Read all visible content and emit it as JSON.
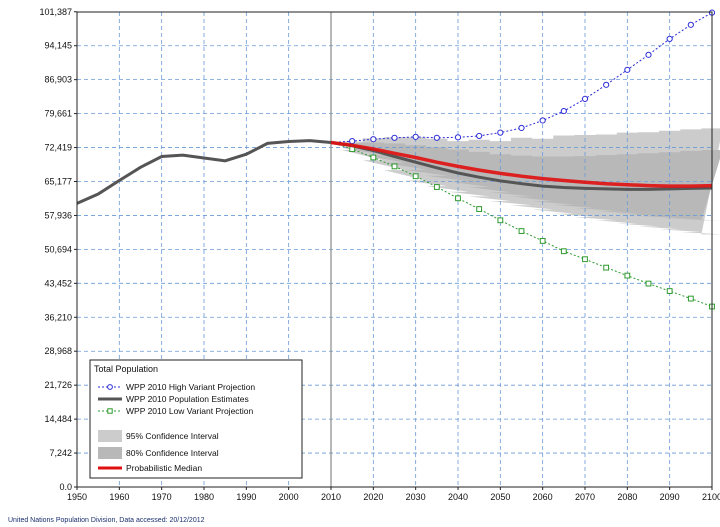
{
  "chart_data": {
    "type": "line",
    "title": "",
    "xlabel": "",
    "ylabel": "",
    "xlim": [
      1950,
      2100
    ],
    "ylim": [
      0,
      101338
    ],
    "x_ticks": [
      1950,
      1960,
      1970,
      1980,
      1990,
      2000,
      2010,
      2020,
      2030,
      2040,
      2050,
      2060,
      2070,
      2080,
      2090,
      2100
    ],
    "y_ticks": [
      {
        "value": 0,
        "label": "0.0"
      },
      {
        "value": 7242,
        "label": "7,242"
      },
      {
        "value": 14484,
        "label": "14,484"
      },
      {
        "value": 21726,
        "label": "21,726"
      },
      {
        "value": 28968,
        "label": "28,968"
      },
      {
        "value": 36210,
        "label": "36,210"
      },
      {
        "value": 43452,
        "label": "43,452"
      },
      {
        "value": 50694,
        "label": "50,694"
      },
      {
        "value": 57936,
        "label": "57,936"
      },
      {
        "value": 65177,
        "label": "65,177"
      },
      {
        "value": 72419,
        "label": "72,419"
      },
      {
        "value": 79661,
        "label": "79,661"
      },
      {
        "value": 86903,
        "label": "86,903"
      },
      {
        "value": 94145,
        "label": "94,145"
      },
      {
        "value": 101387,
        "label": "101,387"
      }
    ],
    "grid": true,
    "grid_style": "dashed",
    "base_year": 2010,
    "legend_position": "bottom-left",
    "legend_title": "Total Population",
    "series": [
      {
        "name": "WPP 2010 High Variant Projection",
        "color": "#2b2bd6",
        "marker": "circle",
        "style": "dotted",
        "x": [
          2010,
          2015,
          2020,
          2025,
          2030,
          2035,
          2040,
          2045,
          2050,
          2055,
          2060,
          2065,
          2070,
          2075,
          2080,
          2085,
          2090,
          2095,
          2100
        ],
        "y": [
          73500,
          73800,
          74200,
          74500,
          74700,
          74500,
          74600,
          74900,
          75600,
          76600,
          78200,
          80200,
          82800,
          85800,
          89000,
          92200,
          95600,
          98600,
          101200
        ]
      },
      {
        "name": "WPP 2010 Population Estimates",
        "color": "#555555",
        "marker": "none",
        "style": "solid",
        "x": [
          1950,
          1955,
          1960,
          1965,
          1970,
          1975,
          1980,
          1985,
          1990,
          1995,
          2000,
          2005,
          2010,
          2015,
          2020,
          2025,
          2030,
          2035,
          2040,
          2045,
          2050,
          2055,
          2060,
          2065,
          2070,
          2075,
          2080,
          2085,
          2090,
          2095,
          2100
        ],
        "y": [
          60500,
          62500,
          65400,
          68200,
          70500,
          70800,
          70200,
          69600,
          71000,
          73300,
          73700,
          73900,
          73500,
          72800,
          71800,
          70500,
          69300,
          68100,
          67000,
          66100,
          65300,
          64700,
          64200,
          63900,
          63700,
          63600,
          63500,
          63500,
          63600,
          63700,
          63800
        ]
      },
      {
        "name": "WPP 2010 Low Variant Projection",
        "color": "#2e9a2e",
        "marker": "square",
        "style": "dotted",
        "x": [
          2010,
          2015,
          2020,
          2025,
          2030,
          2035,
          2040,
          2045,
          2050,
          2055,
          2060,
          2065,
          2070,
          2075,
          2080,
          2085,
          2090,
          2095,
          2100
        ],
        "y": [
          73500,
          72100,
          70300,
          68400,
          66300,
          64000,
          61600,
          59300,
          56900,
          54600,
          52500,
          50300,
          48600,
          46800,
          45100,
          43400,
          41800,
          40200,
          38500
        ]
      },
      {
        "name": "Probabilistic Median",
        "color": "#e01010",
        "marker": "none",
        "style": "solid",
        "x": [
          2010,
          2015,
          2020,
          2025,
          2030,
          2035,
          2040,
          2045,
          2050,
          2055,
          2060,
          2065,
          2070,
          2075,
          2080,
          2085,
          2090,
          2095,
          2100
        ],
        "y": [
          73500,
          72900,
          72100,
          71200,
          70300,
          69300,
          68400,
          67600,
          66900,
          66300,
          65800,
          65400,
          65000,
          64700,
          64500,
          64300,
          64200,
          64200,
          64300
        ]
      }
    ],
    "bands": [
      {
        "name": "95% Confidence Interval",
        "color": "#cccccc",
        "x": [
          2015,
          2020,
          2025,
          2030,
          2035,
          2040,
          2045,
          2050,
          2055,
          2060,
          2065,
          2070,
          2075,
          2080,
          2085,
          2090,
          2095,
          2100
        ],
        "lower": [
          71900,
          69700,
          67600,
          65400,
          64200,
          63000,
          62000,
          61000,
          60100,
          59200,
          58300,
          57600,
          56900,
          56200,
          55600,
          55000,
          54400,
          53900
        ],
        "upper": [
          73700,
          74400,
          74600,
          74600,
          74300,
          73800,
          74100,
          73800,
          74500,
          74300,
          75000,
          75100,
          75200,
          75600,
          75700,
          76000,
          76300,
          76500
        ]
      },
      {
        "name": "80% Confidence Interval",
        "color": "#b8b8b8",
        "x": [
          2015,
          2020,
          2025,
          2030,
          2035,
          2040,
          2045,
          2050,
          2055,
          2060,
          2065,
          2070,
          2075,
          2080,
          2085,
          2090,
          2095,
          2100
        ],
        "lower": [
          72400,
          70800,
          69200,
          67700,
          66400,
          65200,
          64000,
          62900,
          62000,
          61000,
          60200,
          59500,
          58900,
          58300,
          57800,
          57400,
          57100,
          56900
        ],
        "upper": [
          73400,
          73500,
          73300,
          72900,
          72500,
          72000,
          71500,
          71000,
          70700,
          70500,
          70500,
          70600,
          70800,
          71000,
          71200,
          71400,
          71700,
          71900
        ]
      }
    ]
  },
  "footer": "United Nations Population Division, Data accessed: 20/12/2012"
}
